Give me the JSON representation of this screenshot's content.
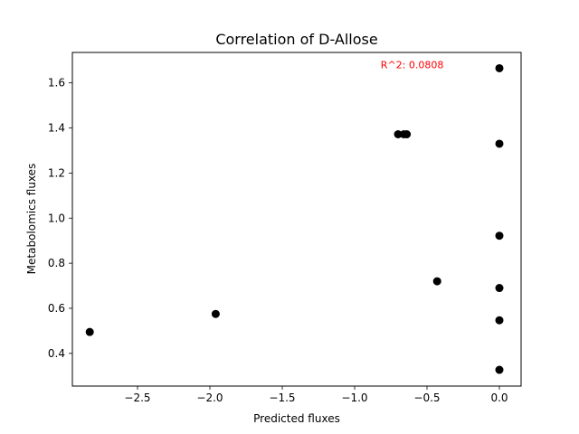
{
  "chart_data": {
    "type": "scatter",
    "title": "Correlation of D-Allose",
    "xlabel": "Predicted fluxes",
    "ylabel": "Metabolomics fluxes",
    "xlim": [
      -2.95,
      0.15
    ],
    "ylim": [
      0.255,
      1.735
    ],
    "grid": false,
    "x_ticks": [
      -2.5,
      -2.0,
      -1.5,
      -1.0,
      -0.5,
      0.0
    ],
    "x_tick_labels": [
      "−2.5",
      "−2.0",
      "−1.5",
      "−1.0",
      "−0.5",
      "0.0"
    ],
    "y_ticks": [
      0.4,
      0.6,
      0.8,
      1.0,
      1.2,
      1.4,
      1.6
    ],
    "y_tick_labels": [
      "0.4",
      "0.6",
      "0.8",
      "1.0",
      "1.2",
      "1.4",
      "1.6"
    ],
    "annotation": {
      "text": "R^2: 0.0808",
      "color": "#ff0000",
      "x": -0.82,
      "y": 1.68
    },
    "marker_color": "#000000",
    "points": [
      {
        "x": -2.83,
        "y": 0.495
      },
      {
        "x": -1.96,
        "y": 0.575
      },
      {
        "x": -0.7,
        "y": 1.372
      },
      {
        "x": -0.66,
        "y": 1.372
      },
      {
        "x": -0.64,
        "y": 1.372
      },
      {
        "x": -0.43,
        "y": 0.72
      },
      {
        "x": 0.0,
        "y": 1.665
      },
      {
        "x": 0.0,
        "y": 1.33
      },
      {
        "x": 0.0,
        "y": 0.922
      },
      {
        "x": 0.0,
        "y": 0.69
      },
      {
        "x": 0.0,
        "y": 0.547
      },
      {
        "x": 0.0,
        "y": 0.327
      }
    ]
  }
}
